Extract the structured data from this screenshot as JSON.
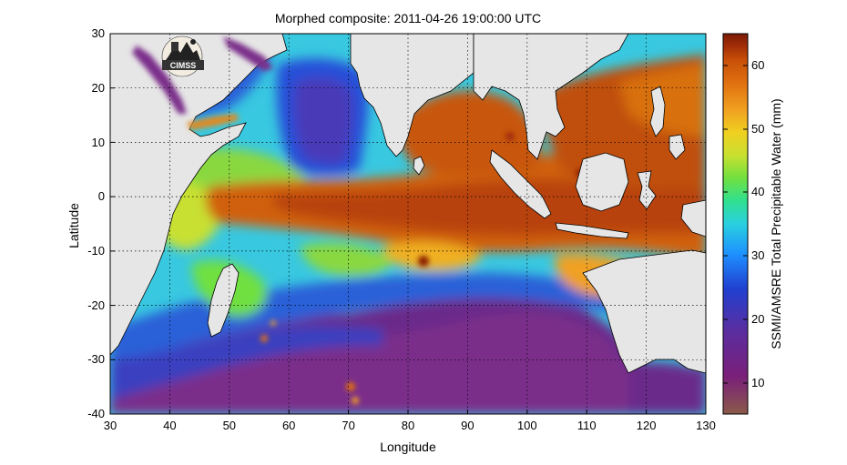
{
  "title": "Morphed composite: 2011-04-26 19:00:00 UTC",
  "map": {
    "xlabel": "Longitude",
    "ylabel": "Latitude",
    "xticks": [
      "30",
      "40",
      "50",
      "60",
      "70",
      "80",
      "90",
      "100",
      "110",
      "120",
      "130"
    ],
    "yticks": [
      "30",
      "20",
      "10",
      "0",
      "-10",
      "-20",
      "-30",
      "-40"
    ],
    "lon_range": [
      30,
      130
    ],
    "lat_range": [
      -40,
      30
    ],
    "grid": "dotted",
    "land_color": "#e6e6e6"
  },
  "colorbar": {
    "label": "SSMI/AMSRE Total Precipitable Water (mm)",
    "ticks": [
      "60",
      "50",
      "40",
      "30",
      "20",
      "10"
    ],
    "range": [
      5,
      65
    ],
    "colormap": [
      "#8a5a4a",
      "#7a1f7a",
      "#5a2ea0",
      "#2040d0",
      "#1e90ff",
      "#2ad0e0",
      "#30e090",
      "#70e040",
      "#c8e030",
      "#f0d020",
      "#f0a020",
      "#e07010",
      "#c85008",
      "#a02c08",
      "#7a1a05"
    ]
  },
  "logo": {
    "text": "CIMSS"
  }
}
